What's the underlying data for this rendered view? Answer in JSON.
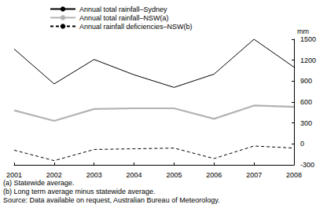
{
  "chart_data": {
    "type": "line",
    "y_label": "mm",
    "categories": [
      "2001",
      "2002",
      "2003",
      "2004",
      "2005",
      "2006",
      "2007",
      "2008"
    ],
    "series": [
      {
        "name": "Annual total rainfall–Sydney",
        "color": "#000000",
        "line_style": "solid",
        "values": [
          1360,
          860,
          1210,
          990,
          810,
          1000,
          1500,
          1100
        ]
      },
      {
        "name": "Annual total rainfall–NSW(a)",
        "color": "#b3b3b3",
        "line_style": "solid",
        "values": [
          480,
          330,
          500,
          510,
          510,
          360,
          550,
          530
        ]
      },
      {
        "name": "Annual rainfall deficiencies–NSW(b)",
        "color": "#000000",
        "line_style": "dashed",
        "values": [
          -90,
          -240,
          -80,
          -70,
          -60,
          -210,
          -30,
          -60
        ]
      }
    ],
    "ylim": [
      -300,
      1500
    ],
    "yticks": [
      -300,
      0,
      300,
      600,
      900,
      1200,
      1500
    ],
    "grid": false,
    "legend": "top-left",
    "footnotes": [
      "(a) Statewide average.",
      "(b) Long term average minus statewide average."
    ],
    "source": "Source: Data available on request, Australian Bureau of Meteorology."
  }
}
